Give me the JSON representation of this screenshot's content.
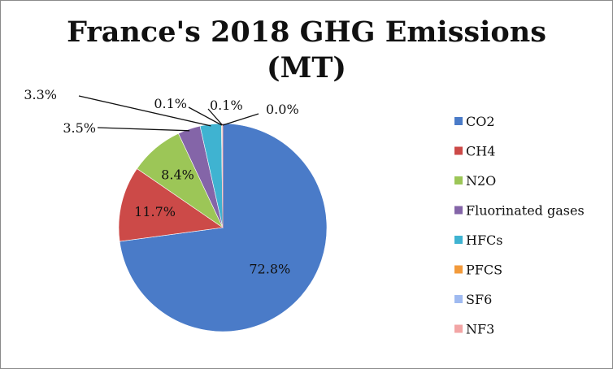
{
  "chart_data": {
    "type": "pie",
    "title": "France's 2018 GHG Emissions (MT)",
    "title_lines": [
      "France's 2018 GHG Emissions",
      "(MT)"
    ],
    "series": [
      {
        "name": "CO2",
        "value": 72.8,
        "label": "72.8%",
        "color": "#4a7bc8"
      },
      {
        "name": "CH4",
        "value": 11.7,
        "label": "11.7%",
        "color": "#cc4a48"
      },
      {
        "name": "N2O",
        "value": 8.4,
        "label": "8.4%",
        "color": "#9cc657"
      },
      {
        "name": "Fluorinated gases",
        "value": 3.5,
        "label": "3.5%",
        "color": "#8465a8"
      },
      {
        "name": "HFCs",
        "value": 3.3,
        "label": "3.3%",
        "color": "#3fb3d1"
      },
      {
        "name": "PFCS",
        "value": 0.1,
        "label": "0.1%",
        "color": "#f29a3b"
      },
      {
        "name": "SF6",
        "value": 0.1,
        "label": "0.1%",
        "color": "#9fbaf0"
      },
      {
        "name": "NF3",
        "value": 0.0,
        "label": "0.0%",
        "color": "#f2a5a5"
      }
    ],
    "legend_position": "right"
  }
}
